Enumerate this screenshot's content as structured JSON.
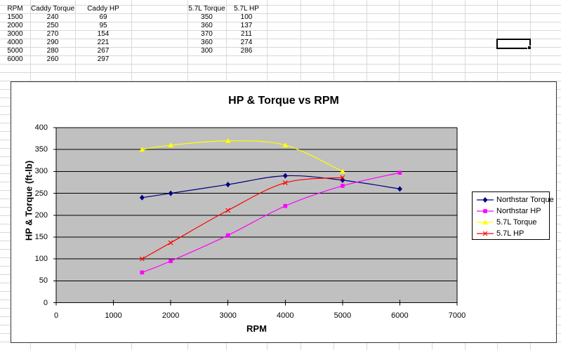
{
  "spreadsheet": {
    "header": {
      "rpm": "RPM",
      "caddy_torque": "Caddy Torque",
      "caddy_hp": "Caddy HP",
      "l57_torque": "5.7L Torque",
      "l57_hp": "5.7L HP"
    },
    "rows": [
      {
        "rpm": "1500",
        "caddy_torque": "240",
        "caddy_hp": "69",
        "l57_torque": "350",
        "l57_hp": "100"
      },
      {
        "rpm": "2000",
        "caddy_torque": "250",
        "caddy_hp": "95",
        "l57_torque": "360",
        "l57_hp": "137"
      },
      {
        "rpm": "3000",
        "caddy_torque": "270",
        "caddy_hp": "154",
        "l57_torque": "370",
        "l57_hp": "211"
      },
      {
        "rpm": "4000",
        "caddy_torque": "290",
        "caddy_hp": "221",
        "l57_torque": "360",
        "l57_hp": "274"
      },
      {
        "rpm": "5000",
        "caddy_torque": "280",
        "caddy_hp": "267",
        "l57_torque": "300",
        "l57_hp": "286"
      },
      {
        "rpm": "6000",
        "caddy_torque": "260",
        "caddy_hp": "297",
        "l57_torque": "",
        "l57_hp": ""
      }
    ]
  },
  "chart_data": {
    "type": "line",
    "title": "HP & Torque vs RPM",
    "xlabel": "RPM",
    "ylabel": "HP & Torque (ft-lb)",
    "xlim": [
      0,
      7000
    ],
    "ylim": [
      0,
      400
    ],
    "xticks": [
      "0",
      "1000",
      "2000",
      "3000",
      "4000",
      "5000",
      "6000",
      "7000"
    ],
    "yticks": [
      "400",
      "350",
      "300",
      "250",
      "200",
      "150",
      "100",
      "50",
      "0"
    ],
    "grid": "horizontal-only",
    "plot_bg": "#C0C0C0",
    "gridline_color": "#000000",
    "legend_position": "right",
    "smooth_lines": true,
    "series": [
      {
        "name": "Northstar Torque",
        "color": "#000080",
        "marker": "diamond",
        "x": [
          1500,
          2000,
          3000,
          4000,
          5000,
          6000
        ],
        "values": [
          240,
          250,
          270,
          290,
          280,
          260
        ]
      },
      {
        "name": "Northstar HP",
        "color": "#FF00FF",
        "marker": "square",
        "x": [
          1500,
          2000,
          3000,
          4000,
          5000,
          6000
        ],
        "values": [
          69,
          95,
          154,
          221,
          267,
          297
        ]
      },
      {
        "name": "5.7L Torque",
        "color": "#FFFF00",
        "marker": "triangle",
        "x": [
          1500,
          2000,
          3000,
          4000,
          5000
        ],
        "values": [
          350,
          360,
          370,
          360,
          300
        ]
      },
      {
        "name": "5.7L HP",
        "color": "#FF0000",
        "marker": "x",
        "x": [
          1500,
          2000,
          3000,
          4000,
          5000
        ],
        "values": [
          100,
          137,
          211,
          274,
          286
        ]
      }
    ]
  }
}
